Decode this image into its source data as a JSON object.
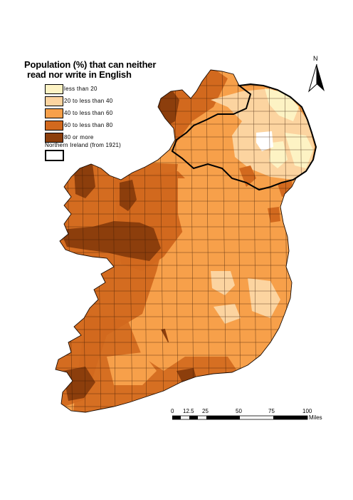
{
  "title": {
    "line1": "Population (%) that can neither",
    "line2": "read nor write in English"
  },
  "legend": {
    "items": [
      {
        "label": "less than 20",
        "color": "#fdf3c4"
      },
      {
        "label": "20 to less than 40",
        "color": "#fcd4a0"
      },
      {
        "label": "40 to less than 60",
        "color": "#f7a04a"
      },
      {
        "label": "60 to less than 80",
        "color": "#d2691e"
      },
      {
        "label": "80 or more",
        "color": "#8c3e0c"
      }
    ],
    "ni_label": "Northern Ireland (from 1921)"
  },
  "north_arrow": {
    "label": "N"
  },
  "scale_bar": {
    "ticks": [
      "0",
      "12.5",
      "25",
      "50",
      "75",
      "100"
    ],
    "unit": "Miles"
  }
}
